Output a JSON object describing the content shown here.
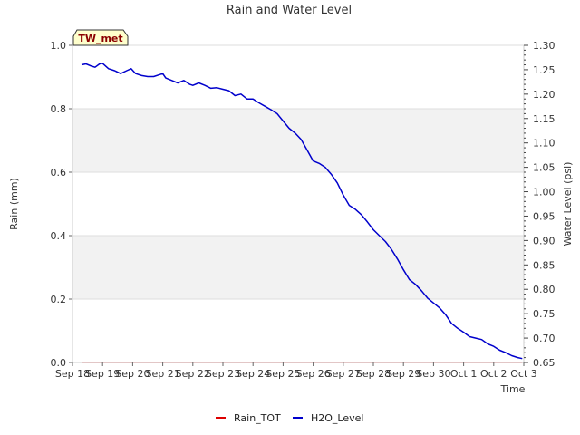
{
  "chart_data": {
    "type": "line",
    "title": "Rain and Water Level",
    "station_label": "TW_met",
    "xlabel": "Time",
    "ylabel_left": "Rain (mm)",
    "ylabel_right": "Water Level (psi)",
    "x_tick_labels": [
      "Sep 18",
      "Sep 19",
      "Sep 20",
      "Sep 21",
      "Sep 22",
      "Sep 23",
      "Sep 24",
      "Sep 25",
      "Sep 26",
      "Sep 27",
      "Sep 28",
      "Sep 29",
      "Sep 30",
      "Oct 1",
      "Oct 2",
      "Oct 3"
    ],
    "xlim_days": [
      0,
      15
    ],
    "y_left": {
      "ylim": [
        0.0,
        1.0
      ],
      "ticks": [
        "0.0",
        "0.2",
        "0.4",
        "0.6",
        "0.8",
        "1.0"
      ]
    },
    "y_right": {
      "ylim": [
        0.65,
        1.3
      ],
      "ticks": [
        "0.65",
        "0.70",
        "0.75",
        "0.80",
        "0.85",
        "0.90",
        "0.95",
        "1.00",
        "1.05",
        "1.10",
        "1.15",
        "1.20",
        "1.25",
        "1.30"
      ]
    },
    "series": [
      {
        "name": "Rain_TOT",
        "axis": "left",
        "color": "#dd0000",
        "x_days": [
          0.3,
          14.95
        ],
        "values": [
          0.0,
          0.0
        ]
      },
      {
        "name": "H2O_Level",
        "axis": "right",
        "color": "#0000cc",
        "x_days": [
          0.3,
          0.45,
          0.6,
          0.75,
          0.9,
          1.0,
          1.2,
          1.4,
          1.6,
          1.8,
          1.95,
          2.1,
          2.3,
          2.5,
          2.7,
          2.9,
          3.0,
          3.1,
          3.3,
          3.5,
          3.7,
          3.9,
          4.0,
          4.2,
          4.4,
          4.6,
          4.8,
          5.0,
          5.2,
          5.4,
          5.6,
          5.8,
          6.0,
          6.2,
          6.4,
          6.6,
          6.8,
          7.0,
          7.2,
          7.4,
          7.6,
          7.8,
          8.0,
          8.2,
          8.4,
          8.6,
          8.8,
          9.0,
          9.2,
          9.4,
          9.6,
          9.8,
          10.0,
          10.2,
          10.4,
          10.6,
          10.8,
          11.0,
          11.2,
          11.4,
          11.6,
          11.8,
          12.0,
          12.2,
          12.4,
          12.6,
          12.8,
          13.0,
          13.2,
          13.4,
          13.6,
          13.8,
          14.0,
          14.2,
          14.4,
          14.6,
          14.8,
          14.95
        ],
        "values": [
          1.26,
          1.262,
          1.258,
          1.255,
          1.262,
          1.263,
          1.252,
          1.248,
          1.242,
          1.248,
          1.252,
          1.242,
          1.238,
          1.236,
          1.236,
          1.24,
          1.242,
          1.233,
          1.228,
          1.223,
          1.228,
          1.22,
          1.218,
          1.223,
          1.218,
          1.212,
          1.213,
          1.21,
          1.207,
          1.197,
          1.2,
          1.19,
          1.19,
          1.182,
          1.175,
          1.168,
          1.16,
          1.145,
          1.13,
          1.12,
          1.107,
          1.085,
          1.063,
          1.058,
          1.05,
          1.036,
          1.018,
          0.993,
          0.972,
          0.964,
          0.953,
          0.938,
          0.922,
          0.91,
          0.898,
          0.882,
          0.862,
          0.84,
          0.82,
          0.81,
          0.797,
          0.782,
          0.772,
          0.762,
          0.748,
          0.73,
          0.72,
          0.712,
          0.703,
          0.7,
          0.697,
          0.688,
          0.683,
          0.675,
          0.67,
          0.664,
          0.66,
          0.658
        ]
      }
    ],
    "legend": {
      "placement": "bottom-center",
      "entries": [
        "Rain_TOT",
        "H2O_Level"
      ]
    }
  }
}
